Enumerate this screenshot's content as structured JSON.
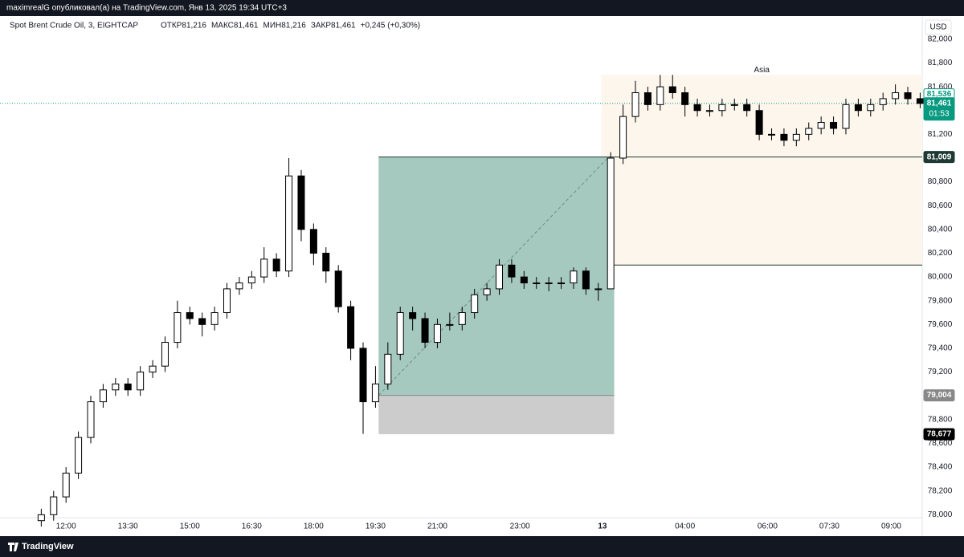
{
  "page": {
    "publisher": "maximrealG опубликовал(а) на TradingView.com, Янв 13, 2025 19:34 UTC+3",
    "brand": "TradingView"
  },
  "chart_data": {
    "type": "candlestick",
    "legend": {
      "symbol": "Spot Brent Crude Oil, 3, EIGHTCAP",
      "items": [
        "ОТКР81,216",
        "МАКС81,461",
        "МИН81,216",
        "ЗАКР81,461",
        "+0,245 (+0,30%)"
      ]
    },
    "currency": "USD",
    "up_color": "#ffffff",
    "down_color": "#000000",
    "border_color": "#000000",
    "x": [
      -12,
      -6,
      0,
      6,
      12,
      18,
      24,
      30,
      36,
      42,
      48,
      54,
      60,
      66,
      72,
      78,
      84,
      90,
      96,
      102,
      108,
      114,
      120,
      126,
      132,
      138,
      144,
      150,
      156,
      162,
      168,
      174,
      180,
      186,
      192,
      198,
      204,
      210,
      216,
      222,
      228,
      234,
      240,
      246,
      252,
      258,
      264,
      270,
      276,
      282,
      288,
      294,
      300,
      306,
      312,
      318,
      324,
      330,
      336,
      342,
      348,
      354,
      360,
      366,
      372,
      378,
      384,
      390,
      396,
      402,
      408,
      414
    ],
    "open": [
      77.95,
      78.0,
      78.15,
      78.35,
      78.65,
      78.95,
      79.05,
      79.1,
      79.05,
      79.2,
      79.25,
      79.45,
      79.7,
      79.65,
      79.6,
      79.7,
      79.9,
      79.95,
      80.0,
      80.15,
      80.05,
      80.85,
      80.4,
      80.2,
      80.05,
      79.75,
      79.4,
      78.95,
      79.1,
      79.35,
      79.7,
      79.65,
      79.45,
      79.6,
      79.6,
      79.7,
      79.85,
      79.9,
      80.1,
      80.0,
      79.95,
      79.95,
      79.95,
      79.95,
      80.05,
      79.9,
      79.9,
      81.0,
      81.35,
      81.55,
      81.45,
      81.6,
      81.55,
      81.45,
      81.4,
      81.4,
      81.45,
      81.45,
      81.4,
      81.2,
      81.2,
      81.15,
      81.2,
      81.25,
      81.3,
      81.25,
      81.45,
      81.4,
      81.45,
      81.5,
      81.55,
      81.5
    ],
    "high": [
      78.05,
      78.2,
      78.4,
      78.7,
      79.0,
      79.1,
      79.15,
      79.15,
      79.25,
      79.3,
      79.5,
      79.8,
      79.75,
      79.7,
      79.75,
      79.95,
      80.0,
      80.05,
      80.25,
      80.2,
      81.0,
      80.9,
      80.45,
      80.25,
      80.1,
      79.8,
      79.45,
      79.25,
      79.45,
      79.75,
      79.75,
      79.7,
      79.65,
      79.7,
      79.75,
      79.9,
      79.95,
      80.15,
      80.15,
      80.05,
      80.0,
      80.0,
      80.0,
      80.08,
      80.08,
      79.95,
      81.05,
      81.45,
      81.65,
      81.6,
      81.7,
      81.7,
      81.6,
      81.5,
      81.45,
      81.5,
      81.5,
      81.5,
      81.45,
      81.25,
      81.25,
      81.25,
      81.3,
      81.35,
      81.35,
      81.5,
      81.5,
      81.5,
      81.55,
      81.62,
      81.6,
      81.55
    ],
    "low": [
      77.9,
      77.95,
      78.1,
      78.3,
      78.6,
      78.9,
      79.0,
      79.0,
      79.0,
      79.15,
      79.2,
      79.4,
      79.6,
      79.5,
      79.55,
      79.65,
      79.85,
      79.9,
      79.95,
      80.0,
      80.0,
      80.3,
      80.1,
      79.95,
      79.7,
      79.3,
      78.68,
      78.9,
      79.05,
      79.3,
      79.55,
      79.4,
      79.4,
      79.55,
      79.55,
      79.65,
      79.8,
      79.85,
      79.95,
      79.9,
      79.9,
      79.88,
      79.9,
      79.9,
      79.85,
      79.8,
      79.9,
      80.95,
      81.3,
      81.4,
      81.4,
      81.5,
      81.35,
      81.35,
      81.35,
      81.35,
      81.4,
      81.35,
      81.15,
      81.15,
      81.1,
      81.1,
      81.15,
      81.2,
      81.2,
      81.2,
      81.35,
      81.35,
      81.4,
      81.45,
      81.45,
      81.42
    ],
    "close": [
      78.0,
      78.15,
      78.35,
      78.65,
      78.95,
      79.05,
      79.1,
      79.05,
      79.2,
      79.25,
      79.45,
      79.7,
      79.65,
      79.6,
      79.7,
      79.9,
      79.95,
      80.0,
      80.15,
      80.05,
      80.85,
      80.4,
      80.2,
      80.05,
      79.75,
      79.4,
      78.95,
      79.1,
      79.35,
      79.7,
      79.65,
      79.45,
      79.6,
      79.6,
      79.7,
      79.85,
      79.9,
      80.1,
      80.0,
      79.95,
      79.95,
      79.95,
      79.95,
      80.05,
      79.9,
      79.9,
      81.0,
      81.35,
      81.55,
      81.45,
      81.6,
      81.55,
      81.45,
      81.4,
      81.4,
      81.45,
      81.45,
      81.4,
      81.2,
      81.2,
      81.15,
      81.2,
      81.25,
      81.3,
      81.25,
      81.45,
      81.4,
      81.45,
      81.5,
      81.55,
      81.5,
      81.46
    ],
    "xlim": [
      -32,
      415
    ],
    "ylim": [
      77.975,
      82.195
    ],
    "xticks": [
      {
        "value": 0,
        "label": "12:00"
      },
      {
        "value": 30,
        "label": "13:30"
      },
      {
        "value": 60,
        "label": "15:00"
      },
      {
        "value": 90,
        "label": "16:30"
      },
      {
        "value": 120,
        "label": "18:00"
      },
      {
        "value": 150,
        "label": "19:30"
      },
      {
        "value": 180,
        "label": "21:00"
      },
      {
        "value": 220,
        "label": "23:00"
      },
      {
        "value": 260,
        "label": "13"
      },
      {
        "value": 300,
        "label": "04:00"
      },
      {
        "value": 340,
        "label": "06:00"
      },
      {
        "value": 370,
        "label": "07:30"
      },
      {
        "value": 400,
        "label": "09:00"
      }
    ],
    "yticks": [
      {
        "value": 78.0,
        "label": "78,000"
      },
      {
        "value": 78.2,
        "label": "78,200"
      },
      {
        "value": 78.4,
        "label": "78,400"
      },
      {
        "value": 78.6,
        "label": "78,600"
      },
      {
        "value": 78.8,
        "label": "78,800"
      },
      {
        "value": 79.0,
        "label": "79,000"
      },
      {
        "value": 79.2,
        "label": "79,200"
      },
      {
        "value": 79.4,
        "label": "79,400"
      },
      {
        "value": 79.6,
        "label": "79,600"
      },
      {
        "value": 79.8,
        "label": "79,800"
      },
      {
        "value": 80.0,
        "label": "80,000"
      },
      {
        "value": 80.2,
        "label": "80,200"
      },
      {
        "value": 80.4,
        "label": "80,400"
      },
      {
        "value": 80.6,
        "label": "80,600"
      },
      {
        "value": 80.8,
        "label": "80,800"
      },
      {
        "value": 81.0,
        "label": "81,000"
      },
      {
        "value": 81.2,
        "label": "81,200"
      },
      {
        "value": 81.4,
        "label": "81,400"
      },
      {
        "value": 81.6,
        "label": "81,600"
      },
      {
        "value": 81.8,
        "label": "81,800"
      },
      {
        "value": 82.0,
        "label": "82,000"
      }
    ],
    "session": {
      "label": "Asia",
      "x_start": 259.4,
      "low": 80.1,
      "high": 81.7,
      "color": "#fdf6ec"
    },
    "position": {
      "x_start": 151.5,
      "x_end": 265.7,
      "entry": 79.004,
      "target": 81.009,
      "stop": 78.677,
      "target_color": "#a6c9bf",
      "stop_color": "#cccccc"
    },
    "price_labels": [
      {
        "value": 81.536,
        "label": "81,536",
        "bg": "#ffffff",
        "fg": "#089981"
      },
      {
        "value": 81.461,
        "label": "81,461",
        "sub": "01:53",
        "bg": "#089981",
        "fg": "#ffffff"
      },
      {
        "value": 81.009,
        "label": "81,009",
        "bg": "#1e3a33",
        "fg": "#ffffff"
      },
      {
        "value": 79.004,
        "label": "79,004",
        "bg": "#888888",
        "fg": "#ffffff"
      },
      {
        "value": 78.677,
        "label": "78,677",
        "bg": "#000000",
        "fg": "#ffffff"
      }
    ]
  }
}
